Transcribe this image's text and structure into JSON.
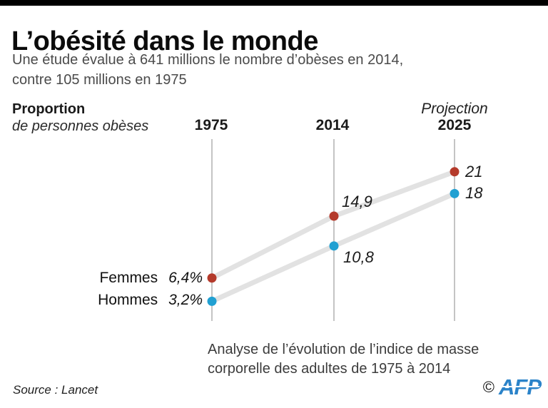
{
  "header": {
    "title": "L’obésité dans le monde",
    "subtitle_line1": "Une étude évalue à 641 millions le nombre d’obèses en 2014,",
    "subtitle_line2": "contre 105 millions en 1975"
  },
  "chart": {
    "y_axis_title": "Proportion",
    "y_axis_subtitle": "de personnes obèses",
    "columns": {
      "c1975": "1975",
      "c2014": "2014",
      "c2025_label": "Projection",
      "c2025_year": "2025"
    },
    "series_labels": {
      "femmes": "Femmes",
      "hommes": "Hommes"
    },
    "value_labels": {
      "femmes_1975": "6,4%",
      "hommes_1975": "3,2%",
      "femmes_2014": "14,9",
      "hommes_2014": "10,8",
      "femmes_2025": "21",
      "hommes_2025": "18"
    }
  },
  "chart_data": {
    "type": "line",
    "categories": [
      "1975",
      "2014",
      "2025 (Projection)"
    ],
    "series": [
      {
        "name": "Femmes",
        "color": "#b43a2b",
        "values": [
          6.4,
          14.9,
          21.0
        ]
      },
      {
        "name": "Hommes",
        "color": "#21a0d2",
        "values": [
          3.2,
          10.8,
          18.0
        ]
      }
    ],
    "title": "Proportion de personnes obèses (%)",
    "xlabel": "",
    "ylabel": "Proportion de personnes obèses",
    "ylim": [
      0,
      25
    ],
    "grid": "vertical category rules only",
    "legend_position": "series names inline, left of 1975 points"
  },
  "footer": {
    "note_line1": "Analyse de l’évolution de l’indice de masse",
    "note_line2": "corporelle des adultes de 1975 à 2014",
    "source": "Source : Lancet",
    "copyright_symbol": "©",
    "agency": "AFP"
  },
  "colors": {
    "femmes": "#b43a2b",
    "hommes": "#21a0d2",
    "band": "#e2e2e2",
    "column_line": "#9e9e9e",
    "afp_blue": "#2b83c9",
    "top_bar": "#000000"
  }
}
